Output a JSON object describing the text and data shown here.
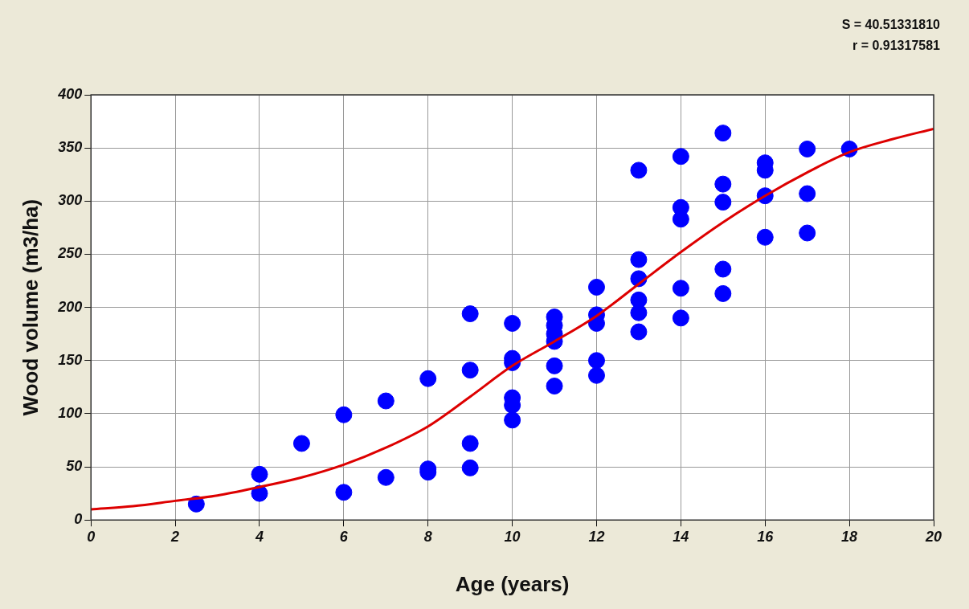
{
  "chart_data": {
    "type": "scatter",
    "xlabel": "Age (years)",
    "ylabel": "Wood volume (m3/ha)",
    "annotations": [
      "S = 40.51331810",
      "r = 0.91317581"
    ],
    "xlim": [
      0,
      20
    ],
    "xticks": [
      0,
      2,
      4,
      6,
      8,
      10,
      12,
      14,
      16,
      18,
      20
    ],
    "ylim": [
      0,
      400
    ],
    "yticks": [
      0,
      50,
      100,
      150,
      200,
      250,
      300,
      350,
      400
    ],
    "grid": true,
    "legend": false,
    "marker": "circle",
    "series": [
      {
        "type": "scatter",
        "color": "#0000ff",
        "x": [
          2.5,
          4,
          4,
          5,
          6,
          6,
          7,
          7,
          8,
          8,
          8,
          9,
          9,
          9,
          9,
          10,
          10,
          10,
          10,
          10,
          10,
          11,
          11,
          11,
          11,
          11,
          11,
          12,
          12,
          12,
          12,
          12,
          13,
          13,
          13,
          13,
          13,
          13,
          14,
          14,
          14,
          14,
          14,
          15,
          15,
          15,
          15,
          15,
          16,
          16,
          16,
          16,
          17,
          17,
          17,
          18
        ],
        "values": [
          15,
          43,
          25,
          72,
          99,
          26,
          112,
          40,
          133,
          48,
          45,
          194,
          141,
          72,
          49,
          185,
          152,
          148,
          115,
          108,
          94,
          191,
          183,
          175,
          168,
          145,
          126,
          219,
          193,
          185,
          150,
          136,
          329,
          245,
          227,
          207,
          195,
          177,
          342,
          294,
          283,
          218,
          190,
          364,
          316,
          299,
          236,
          213,
          336,
          329,
          305,
          266,
          349,
          307,
          270,
          349
        ]
      },
      {
        "type": "line",
        "color": "#dd0000",
        "marker": "none",
        "x": [
          0,
          1,
          2,
          3,
          4,
          5,
          6,
          7,
          8,
          9,
          10,
          11,
          12,
          13,
          14,
          15,
          16,
          17,
          18,
          19,
          20
        ],
        "values": [
          10,
          13,
          18,
          23,
          31,
          40,
          52,
          68,
          88,
          116,
          145,
          168,
          192,
          222,
          252,
          280,
          305,
          327,
          346,
          358,
          368
        ]
      }
    ]
  }
}
